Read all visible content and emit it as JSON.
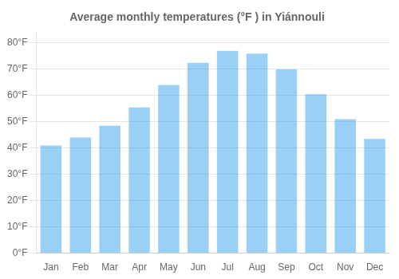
{
  "chart_data": {
    "type": "bar",
    "title": "Average monthly temperatures (°F ) in Yiánnouli",
    "categories": [
      "Jan",
      "Feb",
      "Mar",
      "Apr",
      "May",
      "Jun",
      "Jul",
      "Aug",
      "Sep",
      "Oct",
      "Nov",
      "Dec"
    ],
    "values": [
      41,
      44,
      48.5,
      55.5,
      64,
      72.5,
      77,
      76,
      70,
      60.5,
      51,
      43.5
    ],
    "ylim": [
      0,
      84
    ],
    "yticks": [
      {
        "value": 0,
        "label": "0°F"
      },
      {
        "value": 10,
        "label": "10°F"
      },
      {
        "value": 20,
        "label": "20°F"
      },
      {
        "value": 30,
        "label": "30°F"
      },
      {
        "value": 40,
        "label": "40°F"
      },
      {
        "value": 50,
        "label": "50°F"
      },
      {
        "value": 60,
        "label": "60°F"
      },
      {
        "value": 70,
        "label": "70°F"
      },
      {
        "value": 80,
        "label": "80°F"
      }
    ],
    "grid": true
  }
}
